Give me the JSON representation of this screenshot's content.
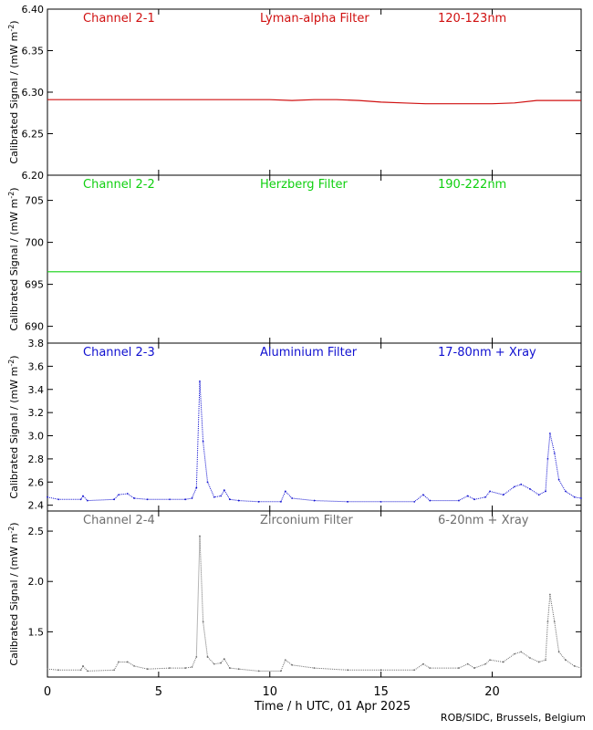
{
  "footer": "ROB/SIDC, Brussels, Belgium",
  "xaxis": {
    "label": "Time / h UTC, 01 Apr 2025",
    "range": [
      0,
      24
    ],
    "ticks": [
      0,
      5,
      10,
      15,
      20
    ],
    "tick_labels": [
      "0",
      "5",
      "10",
      "15",
      "20"
    ]
  },
  "ylabel_main": "Calibrated Signal / (mW m",
  "ylabel_sup": "-2",
  "ylabel_end": ")",
  "chart_data": [
    {
      "type": "line",
      "channel": "Channel 2-1",
      "filter": "Lyman-alpha Filter",
      "band": "120-123nm",
      "color": "#d01010",
      "ylim": [
        6.2,
        6.4
      ],
      "yticks": [
        "6.20",
        "6.25",
        "6.30",
        "6.35",
        "6.40"
      ],
      "series": [
        {
          "x": [
            0,
            2,
            4,
            6,
            8,
            10,
            11,
            12,
            13,
            14,
            15,
            16,
            17,
            18,
            19,
            20,
            21,
            22,
            23,
            24
          ],
          "y": [
            6.291,
            6.291,
            6.291,
            6.291,
            6.291,
            6.291,
            6.29,
            6.291,
            6.291,
            6.29,
            6.288,
            6.287,
            6.286,
            6.286,
            6.286,
            6.286,
            6.287,
            6.29,
            6.29,
            6.29
          ]
        }
      ]
    },
    {
      "type": "line",
      "channel": "Channel 2-2",
      "filter": "Herzberg Filter",
      "band": "190-222nm",
      "color": "#10d010",
      "ylim": [
        688,
        708
      ],
      "yticks": [
        "690",
        "695",
        "700",
        "705"
      ],
      "series": [
        {
          "x": [
            0,
            24
          ],
          "y": [
            696.5,
            696.5
          ]
        }
      ]
    },
    {
      "type": "scatter",
      "channel": "Channel 2-3",
      "filter": "Aluminium Filter",
      "band": "17-80nm + Xray",
      "color": "#1010d0",
      "ylim": [
        2.35,
        3.8
      ],
      "yticks": [
        "2.4",
        "2.6",
        "2.8",
        "3.0",
        "3.2",
        "3.4",
        "3.6",
        "3.8"
      ],
      "series": [
        {
          "x": [
            0,
            0.5,
            1.5,
            1.6,
            1.8,
            3.0,
            3.2,
            3.6,
            3.9,
            4.5,
            5.5,
            6.2,
            6.5,
            6.7,
            6.85,
            7.0,
            7.2,
            7.5,
            7.8,
            7.95,
            8.2,
            8.6,
            9.5,
            10.5,
            10.7,
            11.0,
            12.0,
            13.5,
            15.0,
            16.5,
            16.9,
            17.2,
            18.5,
            18.9,
            19.2,
            19.7,
            19.9,
            20.5,
            21.0,
            21.3,
            21.7,
            22.1,
            22.4,
            22.5,
            22.6,
            22.8,
            23.0,
            23.3,
            23.7,
            24.0
          ],
          "y": [
            2.47,
            2.45,
            2.45,
            2.48,
            2.44,
            2.45,
            2.49,
            2.5,
            2.46,
            2.45,
            2.45,
            2.45,
            2.46,
            2.55,
            3.47,
            2.95,
            2.6,
            2.47,
            2.48,
            2.53,
            2.45,
            2.44,
            2.43,
            2.43,
            2.52,
            2.46,
            2.44,
            2.43,
            2.43,
            2.43,
            2.49,
            2.44,
            2.44,
            2.48,
            2.45,
            2.47,
            2.52,
            2.49,
            2.56,
            2.58,
            2.54,
            2.49,
            2.52,
            2.8,
            3.02,
            2.85,
            2.62,
            2.52,
            2.47,
            2.46
          ]
        }
      ]
    },
    {
      "type": "scatter",
      "channel": "Channel 2-4",
      "filter": "Zirconium Filter",
      "band": "6-20nm + Xray",
      "color": "#6e6e6e",
      "ylim": [
        1.05,
        2.7
      ],
      "yticks": [
        "1.5",
        "2.0",
        "2.5"
      ],
      "series": [
        {
          "x": [
            0,
            0.5,
            1.5,
            1.6,
            1.8,
            3.0,
            3.2,
            3.6,
            3.9,
            4.5,
            5.5,
            6.2,
            6.5,
            6.7,
            6.85,
            7.0,
            7.2,
            7.5,
            7.8,
            7.95,
            8.2,
            8.6,
            9.5,
            10.5,
            10.7,
            11.0,
            12.0,
            13.5,
            15.0,
            16.5,
            16.9,
            17.2,
            18.5,
            18.9,
            19.2,
            19.7,
            19.9,
            20.5,
            21.0,
            21.3,
            21.7,
            22.1,
            22.4,
            22.5,
            22.6,
            22.8,
            23.0,
            23.3,
            23.7,
            24.0
          ],
          "y": [
            1.13,
            1.12,
            1.12,
            1.16,
            1.11,
            1.12,
            1.2,
            1.2,
            1.16,
            1.13,
            1.14,
            1.14,
            1.15,
            1.25,
            2.45,
            1.6,
            1.25,
            1.18,
            1.19,
            1.23,
            1.14,
            1.13,
            1.11,
            1.11,
            1.22,
            1.17,
            1.14,
            1.12,
            1.12,
            1.12,
            1.18,
            1.14,
            1.14,
            1.18,
            1.14,
            1.18,
            1.22,
            1.2,
            1.28,
            1.3,
            1.24,
            1.2,
            1.22,
            1.6,
            1.87,
            1.6,
            1.3,
            1.22,
            1.16,
            1.14
          ]
        }
      ]
    }
  ]
}
